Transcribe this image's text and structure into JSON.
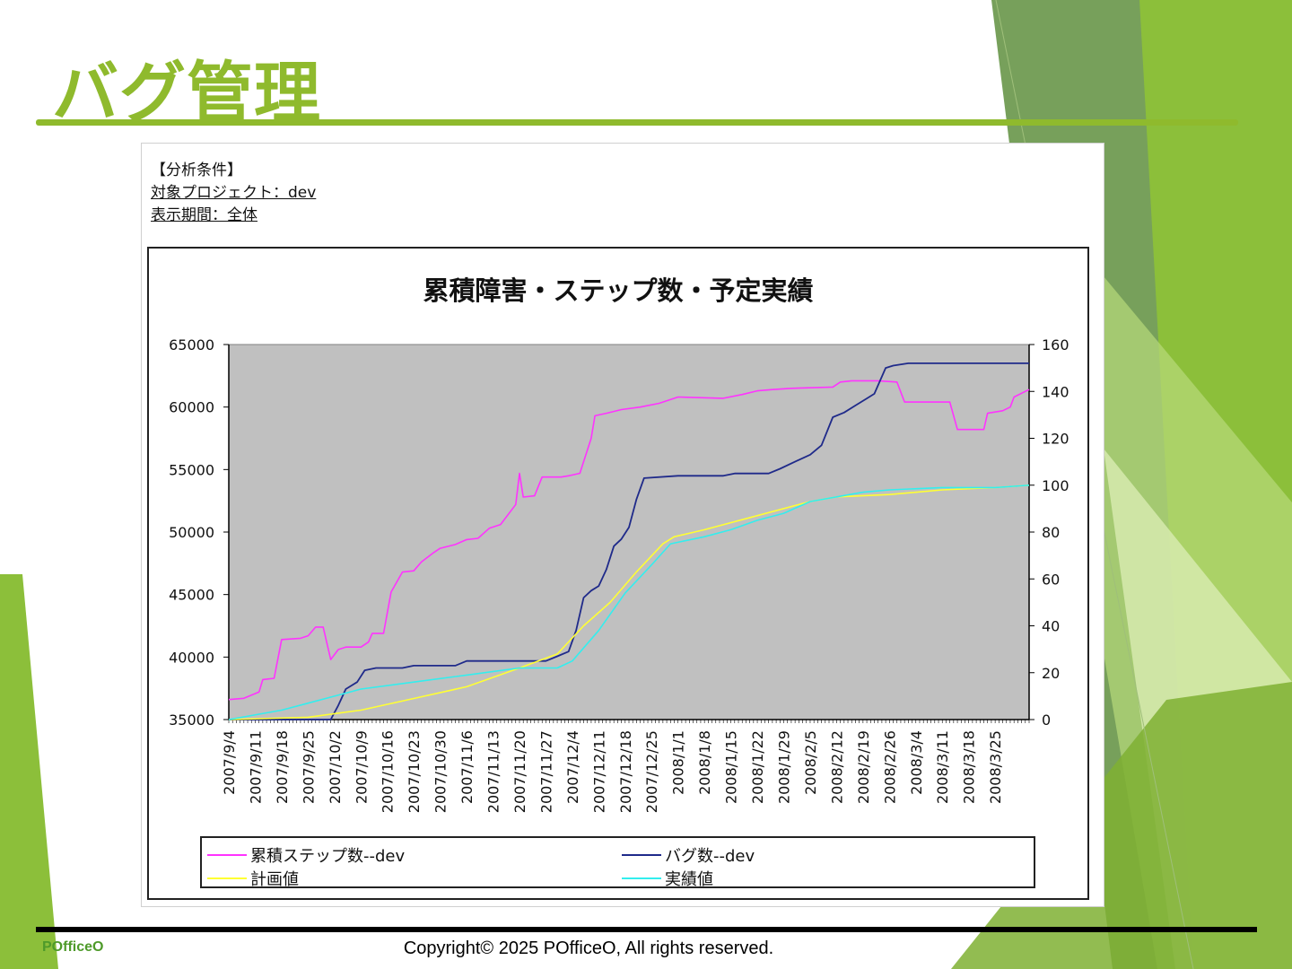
{
  "slide": {
    "title": "バグ管理",
    "brand": "POfficeO",
    "copyright": "Copyright© 2025 POfficeO, All rights reserved.",
    "accent_color": "#8fba2d"
  },
  "conditions": {
    "heading": "【分析条件】",
    "project": "対象プロジェクト：dev",
    "period": "表示期間：全体"
  },
  "chart_data": {
    "type": "line",
    "title": "累積障害・ステップ数・予定実績",
    "plot_background": "#c0c0c0",
    "grid": false,
    "legend_position": "bottom",
    "x_tick_labels": [
      "2007/9/4",
      "2007/9/11",
      "2007/9/18",
      "2007/9/25",
      "2007/10/2",
      "2007/10/9",
      "2007/10/16",
      "2007/10/23",
      "2007/10/30",
      "2007/11/6",
      "2007/11/13",
      "2007/11/20",
      "2007/11/27",
      "2007/12/4",
      "2007/12/11",
      "2007/12/18",
      "2007/12/25",
      "2008/1/1",
      "2008/1/8",
      "2008/1/15",
      "2008/1/22",
      "2008/1/29",
      "2008/2/5",
      "2008/2/12",
      "2008/2/19",
      "2008/2/26",
      "2008/3/4",
      "2008/3/11",
      "2008/3/18",
      "2008/3/25"
    ],
    "x_range": [
      "2007/9/4",
      "2008/4/3"
    ],
    "y_left": {
      "min": 35000,
      "max": 65000,
      "ticks": [
        35000,
        40000,
        45000,
        50000,
        55000,
        60000,
        65000
      ]
    },
    "y_right": {
      "min": 0,
      "max": 160,
      "ticks": [
        0,
        20,
        40,
        60,
        80,
        100,
        120,
        140,
        160
      ]
    },
    "series": [
      {
        "name": "累積ステップ数--dev",
        "axis": "left",
        "color": "#ff33ff",
        "points": [
          [
            "2007/9/4",
            36600
          ],
          [
            "2007/9/8",
            36700
          ],
          [
            "2007/9/12",
            37200
          ],
          [
            "2007/9/13",
            38200
          ],
          [
            "2007/9/16",
            38300
          ],
          [
            "2007/9/18",
            41400
          ],
          [
            "2007/9/23",
            41500
          ],
          [
            "2007/9/25",
            41700
          ],
          [
            "2007/9/27",
            42400
          ],
          [
            "2007/9/29",
            42400
          ],
          [
            "2007/10/1",
            39800
          ],
          [
            "2007/10/3",
            40600
          ],
          [
            "2007/10/5",
            40800
          ],
          [
            "2007/10/9",
            40800
          ],
          [
            "2007/10/11",
            41200
          ],
          [
            "2007/10/12",
            41900
          ],
          [
            "2007/10/15",
            41900
          ],
          [
            "2007/10/17",
            45200
          ],
          [
            "2007/10/20",
            46800
          ],
          [
            "2007/10/23",
            46900
          ],
          [
            "2007/10/25",
            47600
          ],
          [
            "2007/10/28",
            48300
          ],
          [
            "2007/10/30",
            48700
          ],
          [
            "2007/11/3",
            49000
          ],
          [
            "2007/11/6",
            49400
          ],
          [
            "2007/11/9",
            49500
          ],
          [
            "2007/11/12",
            50300
          ],
          [
            "2007/11/15",
            50600
          ],
          [
            "2007/11/19",
            52200
          ],
          [
            "2007/11/20",
            54700
          ],
          [
            "2007/11/21",
            52800
          ],
          [
            "2007/11/24",
            52900
          ],
          [
            "2007/11/26",
            54400
          ],
          [
            "2007/12/1",
            54400
          ],
          [
            "2007/12/3",
            54500
          ],
          [
            "2007/12/6",
            54700
          ],
          [
            "2007/12/9",
            57500
          ],
          [
            "2007/12/10",
            59300
          ],
          [
            "2007/12/13",
            59500
          ],
          [
            "2007/12/17",
            59800
          ],
          [
            "2007/12/22",
            60000
          ],
          [
            "2007/12/27",
            60300
          ],
          [
            "2008/1/1",
            60800
          ],
          [
            "2008/1/13",
            60700
          ],
          [
            "2008/1/18",
            61000
          ],
          [
            "2008/1/22",
            61300
          ],
          [
            "2008/1/26",
            61400
          ],
          [
            "2008/1/31",
            61500
          ],
          [
            "2008/2/11",
            61600
          ],
          [
            "2008/2/13",
            62000
          ],
          [
            "2008/2/16",
            62100
          ],
          [
            "2008/2/23",
            62100
          ],
          [
            "2008/2/28",
            62000
          ],
          [
            "2008/3/1",
            60400
          ],
          [
            "2008/3/13",
            60400
          ],
          [
            "2008/3/15",
            58200
          ],
          [
            "2008/3/22",
            58200
          ],
          [
            "2008/3/23",
            59500
          ],
          [
            "2008/3/27",
            59700
          ],
          [
            "2008/3/29",
            60000
          ],
          [
            "2008/3/30",
            60800
          ],
          [
            "2008/4/1",
            61100
          ],
          [
            "2008/4/3",
            61400
          ]
        ]
      },
      {
        "name": "バグ数--dev",
        "axis": "right",
        "color": "#1f2a8a",
        "points": [
          [
            "2007/9/4",
            0
          ],
          [
            "2007/10/1",
            0
          ],
          [
            "2007/10/3",
            6
          ],
          [
            "2007/10/5",
            13
          ],
          [
            "2007/10/8",
            16
          ],
          [
            "2007/10/10",
            21
          ],
          [
            "2007/10/13",
            22
          ],
          [
            "2007/10/20",
            22
          ],
          [
            "2007/10/23",
            23
          ],
          [
            "2007/11/3",
            23
          ],
          [
            "2007/11/6",
            25
          ],
          [
            "2007/11/27",
            25
          ],
          [
            "2007/11/30",
            27
          ],
          [
            "2007/12/3",
            29
          ],
          [
            "2007/12/5",
            38
          ],
          [
            "2007/12/7",
            52
          ],
          [
            "2007/12/9",
            55
          ],
          [
            "2007/12/11",
            57
          ],
          [
            "2007/12/13",
            64
          ],
          [
            "2007/12/15",
            74
          ],
          [
            "2007/12/17",
            77
          ],
          [
            "2007/12/19",
            82
          ],
          [
            "2007/12/21",
            94
          ],
          [
            "2007/12/23",
            103
          ],
          [
            "2008/1/1",
            104
          ],
          [
            "2008/1/13",
            104
          ],
          [
            "2008/1/16",
            105
          ],
          [
            "2008/1/25",
            105
          ],
          [
            "2008/1/28",
            107
          ],
          [
            "2008/2/1",
            110
          ],
          [
            "2008/2/5",
            113
          ],
          [
            "2008/2/8",
            117
          ],
          [
            "2008/2/11",
            129
          ],
          [
            "2008/2/14",
            131
          ],
          [
            "2008/2/17",
            134
          ],
          [
            "2008/2/20",
            137
          ],
          [
            "2008/2/22",
            139
          ],
          [
            "2008/2/25",
            150
          ],
          [
            "2008/2/27",
            151
          ],
          [
            "2008/3/2",
            152
          ],
          [
            "2008/4/3",
            152
          ]
        ]
      },
      {
        "name": "計画値",
        "axis": "right",
        "color": "#ffff33",
        "points": [
          [
            "2007/9/4",
            0
          ],
          [
            "2007/9/25",
            1
          ],
          [
            "2007/10/9",
            4
          ],
          [
            "2007/10/23",
            9
          ],
          [
            "2007/11/6",
            14
          ],
          [
            "2007/11/20",
            22
          ],
          [
            "2007/11/30",
            28
          ],
          [
            "2007/12/7",
            40
          ],
          [
            "2007/12/14",
            50
          ],
          [
            "2007/12/21",
            63
          ],
          [
            "2007/12/28",
            75
          ],
          [
            "2007/12/31",
            78
          ],
          [
            "2008/1/8",
            81
          ],
          [
            "2008/1/22",
            87
          ],
          [
            "2008/2/5",
            93
          ],
          [
            "2008/2/12",
            95
          ],
          [
            "2008/2/26",
            96
          ],
          [
            "2008/3/11",
            98
          ],
          [
            "2008/3/25",
            99
          ],
          [
            "2008/4/3",
            100
          ]
        ]
      },
      {
        "name": "実績値",
        "axis": "right",
        "color": "#33eeee",
        "points": [
          [
            "2007/9/4",
            0
          ],
          [
            "2007/9/18",
            4
          ],
          [
            "2007/9/25",
            7
          ],
          [
            "2007/10/2",
            10
          ],
          [
            "2007/10/9",
            13
          ],
          [
            "2007/10/23",
            16
          ],
          [
            "2007/11/6",
            19
          ],
          [
            "2007/11/20",
            22
          ],
          [
            "2007/11/30",
            22
          ],
          [
            "2007/12/4",
            25
          ],
          [
            "2007/12/11",
            38
          ],
          [
            "2007/12/18",
            54
          ],
          [
            "2007/12/25",
            66
          ],
          [
            "2007/12/30",
            75
          ],
          [
            "2008/1/8",
            78
          ],
          [
            "2008/1/15",
            81
          ],
          [
            "2008/1/22",
            85
          ],
          [
            "2008/1/29",
            88
          ],
          [
            "2008/2/5",
            93
          ],
          [
            "2008/2/12",
            95
          ],
          [
            "2008/2/19",
            97
          ],
          [
            "2008/2/26",
            98
          ],
          [
            "2008/3/11",
            99
          ],
          [
            "2008/3/25",
            99
          ],
          [
            "2008/4/3",
            100
          ]
        ]
      }
    ]
  }
}
